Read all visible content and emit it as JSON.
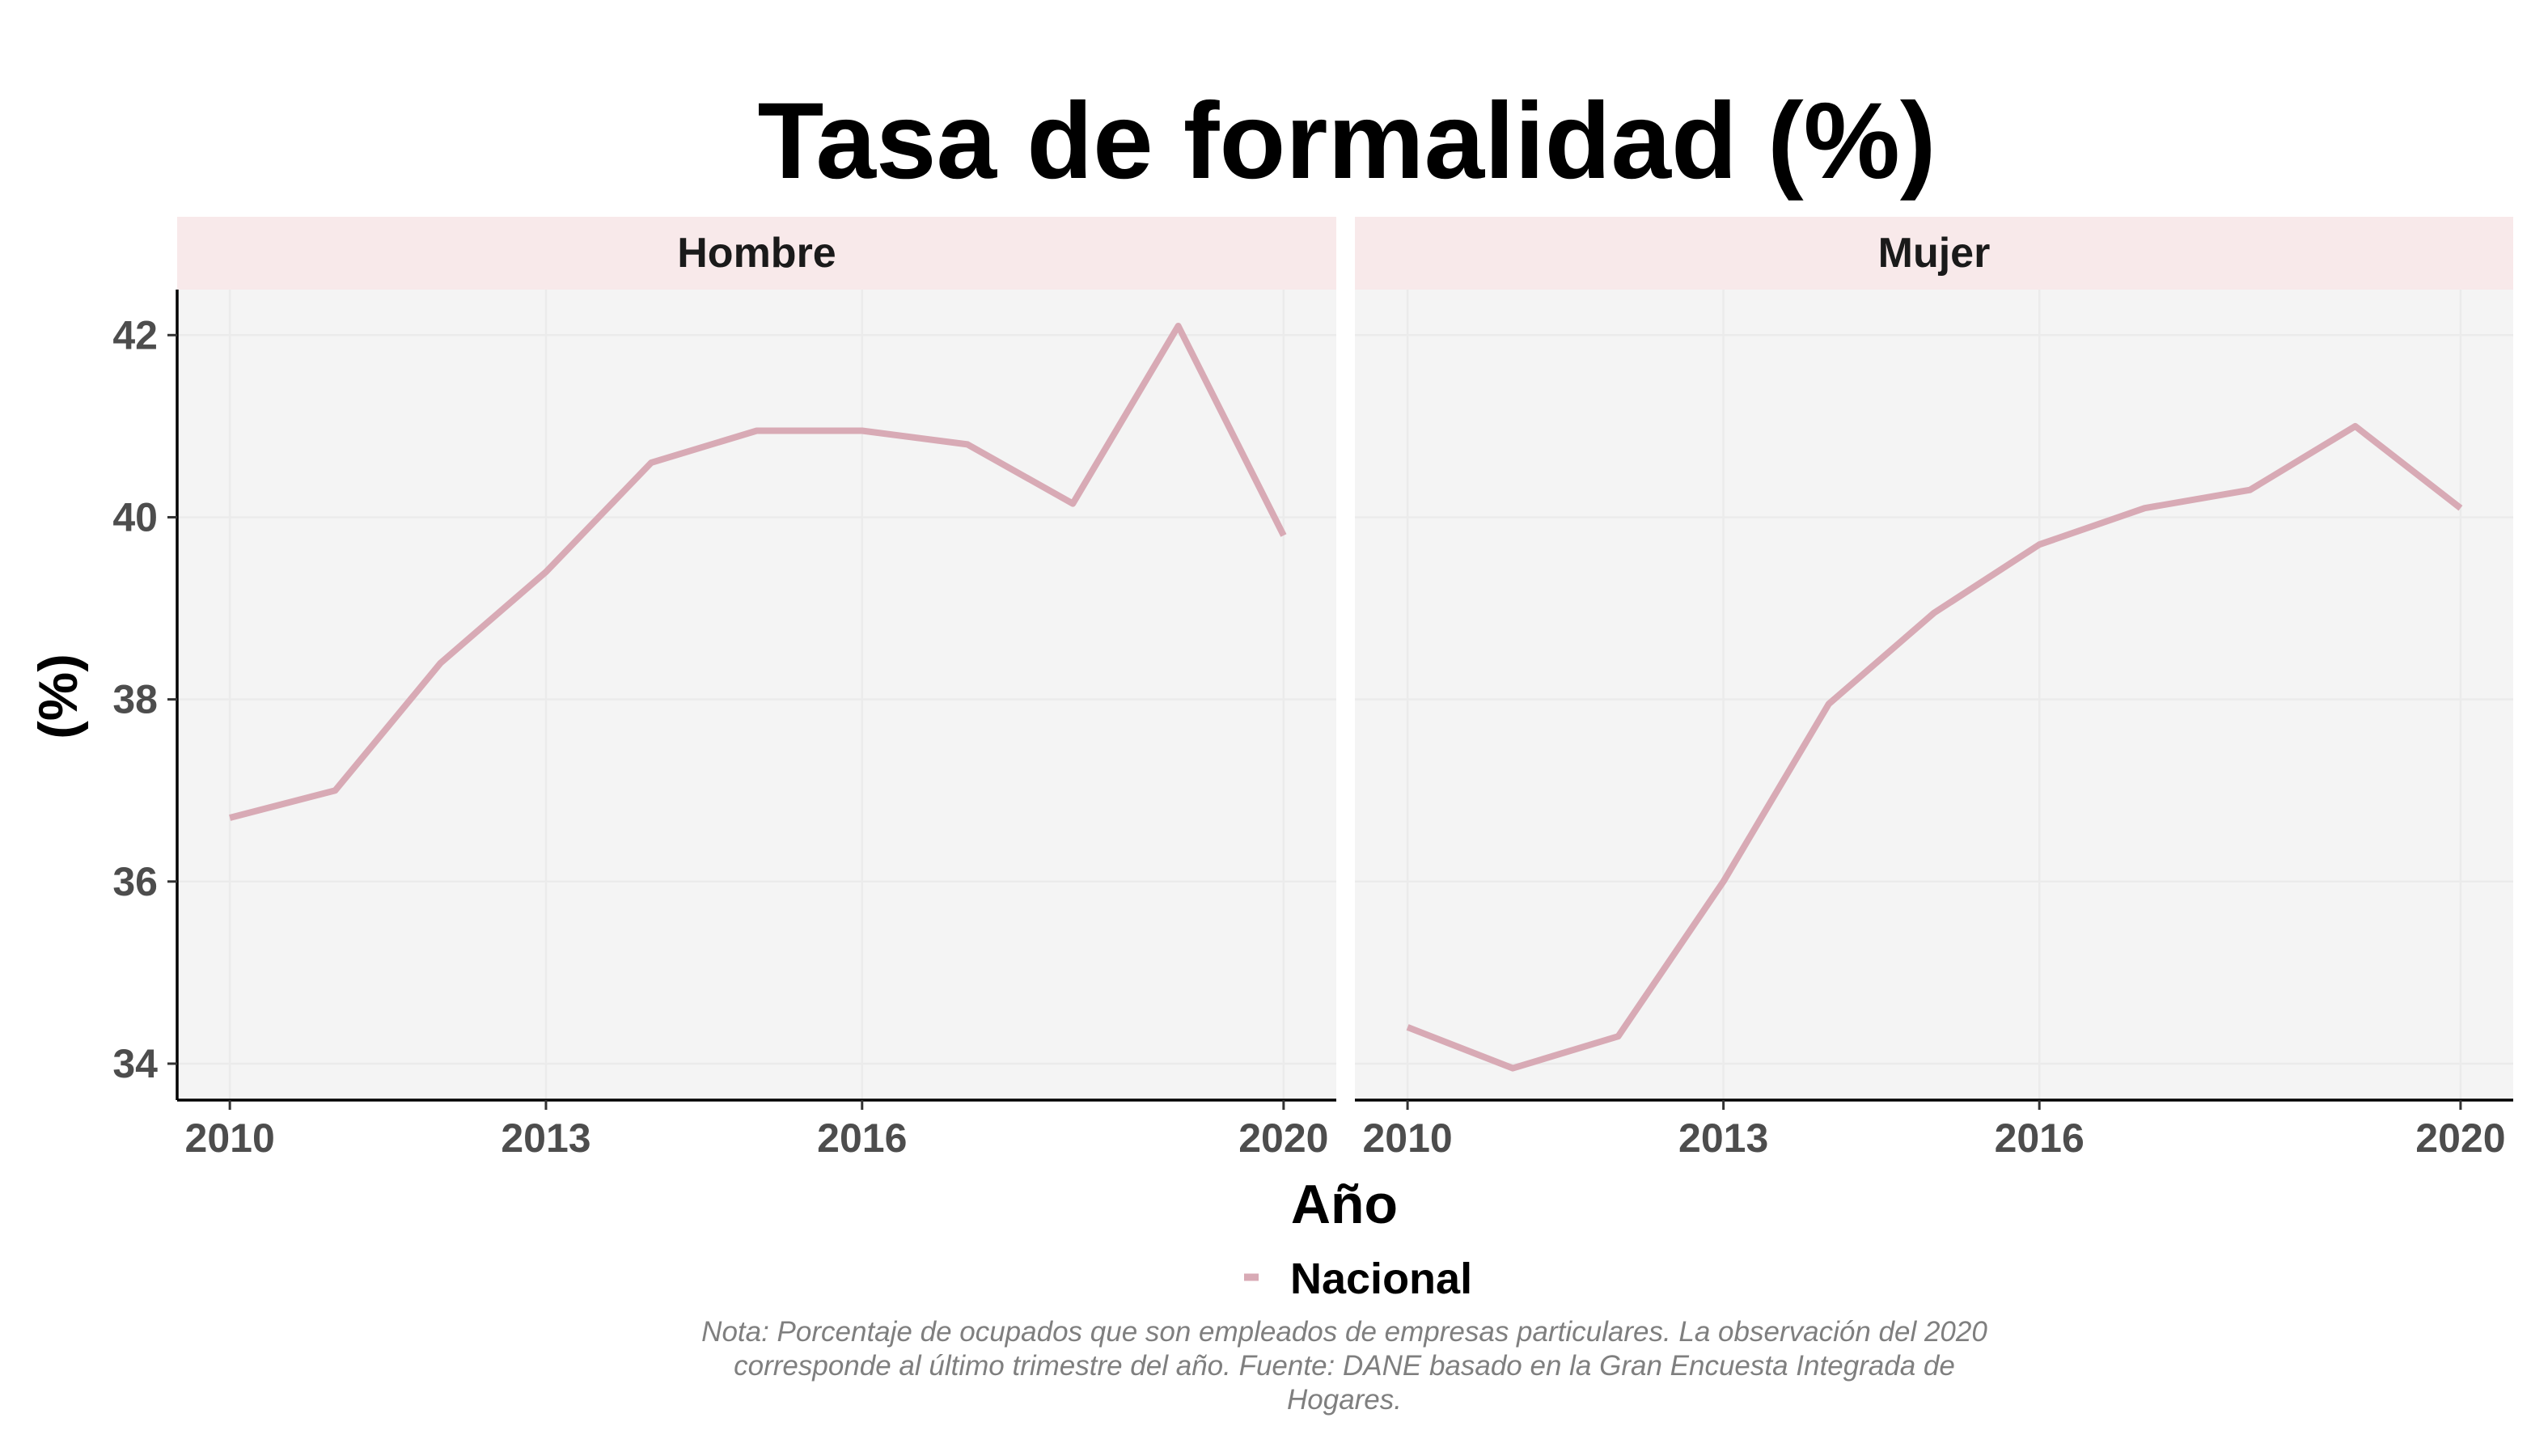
{
  "chart_data": {
    "type": "line",
    "title": "Tasa de formalidad (%)",
    "xlabel": "Año",
    "ylabel": "(%)",
    "x_ticks": [
      "2010",
      "2013",
      "2016",
      "2020"
    ],
    "y_ticks": [
      "34",
      "36",
      "38",
      "40",
      "42"
    ],
    "xlim": [
      2009.5,
      2020.5
    ],
    "ylim": [
      33.6,
      42.5
    ],
    "grid": true,
    "legend": {
      "position": "bottom",
      "entries": [
        "Nacional"
      ]
    },
    "panels": [
      {
        "label": "Hombre",
        "series": [
          {
            "name": "Nacional",
            "color": "#d8aab5",
            "x": [
              2010,
              2011,
              2012,
              2013,
              2014,
              2015,
              2016,
              2017,
              2018,
              2019,
              2020
            ],
            "y": [
              36.7,
              37.0,
              38.4,
              39.4,
              40.6,
              40.95,
              40.95,
              40.8,
              40.15,
              42.1,
              39.8
            ]
          }
        ]
      },
      {
        "label": "Mujer",
        "series": [
          {
            "name": "Nacional",
            "color": "#d8aab5",
            "x": [
              2010,
              2011,
              2012,
              2013,
              2014,
              2015,
              2016,
              2017,
              2018,
              2019,
              2020
            ],
            "y": [
              34.4,
              33.95,
              34.3,
              36.0,
              37.95,
              38.95,
              39.7,
              40.1,
              40.3,
              41.0,
              40.1
            ]
          }
        ]
      }
    ],
    "caption": [
      "Nota: Porcentaje de ocupados que son empleados de empresas particulares. La observación del 2020",
      "corresponde al último trimestre del año. Fuente: DANE basado en la Gran Encuesta Integrada de",
      "Hogares."
    ]
  },
  "colors": {
    "panel_background": "#f4f4f4",
    "strip_background": "#f8e9ea",
    "gridline": "#ebebeb",
    "axis_line": "#000000",
    "series": "#d8aab5"
  }
}
